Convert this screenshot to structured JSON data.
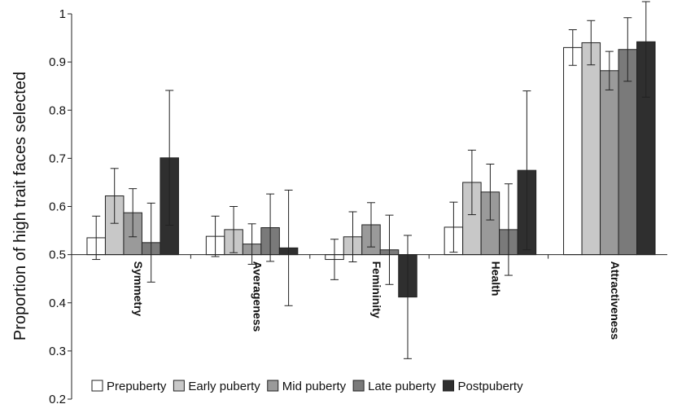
{
  "chart_data": {
    "type": "bar",
    "title": "",
    "xlabel": "",
    "ylabel": "Proportion of high trait faces selected",
    "ylim": [
      0.2,
      1.0
    ],
    "yticks": [
      "0.2",
      "0.3",
      "0.4",
      "0.5",
      "0.6",
      "0.7",
      "0.8",
      "0.9",
      "1"
    ],
    "baseline": 0.5,
    "grid": false,
    "legend_position": "bottom",
    "categories": [
      "Symmetry",
      "Averageness",
      "Femininity",
      "Health",
      "Attractiveness"
    ],
    "series": [
      {
        "name": "Prepuberty",
        "color": "#ffffff",
        "values": [
          0.535,
          0.538,
          0.49,
          0.557,
          0.93
        ],
        "errors": [
          0.045,
          0.042,
          0.042,
          0.052,
          0.037
        ]
      },
      {
        "name": "Early puberty",
        "color": "#c8c8c8",
        "values": [
          0.622,
          0.552,
          0.537,
          0.65,
          0.94
        ],
        "errors": [
          0.057,
          0.048,
          0.052,
          0.067,
          0.046
        ]
      },
      {
        "name": "Mid puberty",
        "color": "#9a9a9a",
        "values": [
          0.587,
          0.522,
          0.562,
          0.63,
          0.882
        ],
        "errors": [
          0.05,
          0.042,
          0.046,
          0.058,
          0.04
        ]
      },
      {
        "name": "Late puberty",
        "color": "#7a7a7a",
        "values": [
          0.525,
          0.556,
          0.51,
          0.552,
          0.926
        ],
        "errors": [
          0.082,
          0.07,
          0.072,
          0.095,
          0.066
        ]
      },
      {
        "name": "Postpuberty",
        "color": "#2f2f2f",
        "values": [
          0.701,
          0.514,
          0.412,
          0.675,
          0.942
        ],
        "errors": [
          0.14,
          0.12,
          0.128,
          0.165,
          0.115
        ]
      }
    ]
  }
}
